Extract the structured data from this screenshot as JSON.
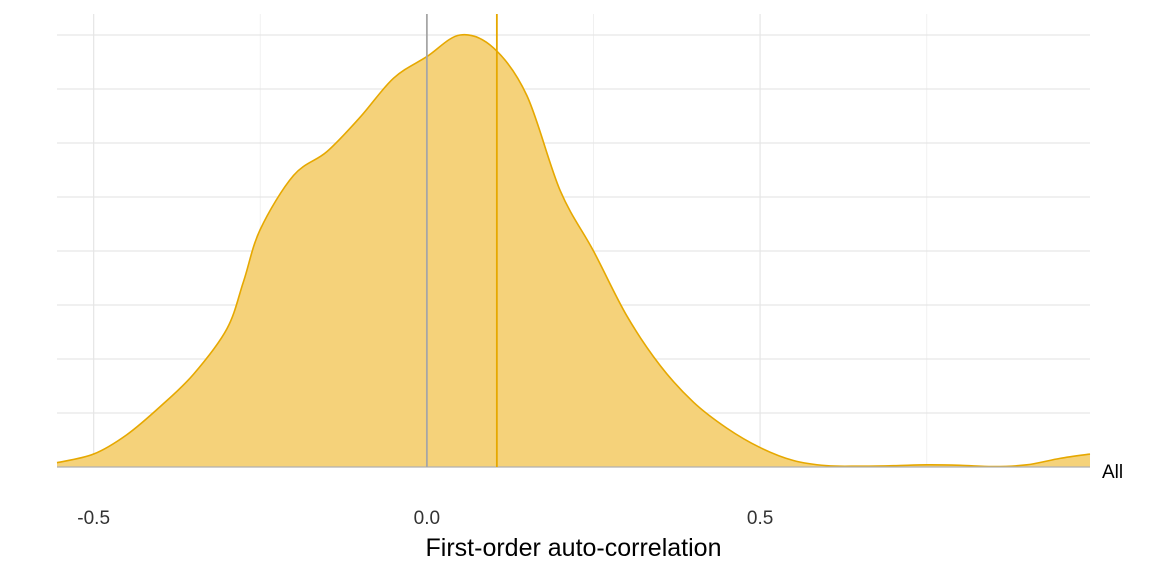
{
  "chart_data": {
    "type": "area",
    "title": "",
    "xlabel": "First-order auto-correlation",
    "ylabel": "",
    "xlim": [
      -0.555,
      0.995
    ],
    "ylim": [
      0,
      1
    ],
    "x_ticks": [
      {
        "value": -0.5,
        "label": "-0.5"
      },
      {
        "value": 0.0,
        "label": "0.0"
      },
      {
        "value": 0.5,
        "label": "0.5"
      }
    ],
    "grid": true,
    "series": [
      {
        "name": "All",
        "x": [
          -0.555,
          -0.5,
          -0.45,
          -0.4,
          -0.35,
          -0.3,
          -0.275,
          -0.25,
          -0.2,
          -0.15,
          -0.1,
          -0.05,
          0.0,
          0.05,
          0.1,
          0.15,
          0.2,
          0.25,
          0.3,
          0.35,
          0.4,
          0.45,
          0.5,
          0.55,
          0.6,
          0.65,
          0.7,
          0.75,
          0.8,
          0.85,
          0.9,
          0.95,
          0.995
        ],
        "density": [
          0.01,
          0.03,
          0.075,
          0.14,
          0.215,
          0.32,
          0.43,
          0.55,
          0.675,
          0.73,
          0.81,
          0.9,
          0.95,
          1.0,
          0.97,
          0.86,
          0.64,
          0.5,
          0.35,
          0.235,
          0.15,
          0.09,
          0.045,
          0.015,
          0.003,
          0.002,
          0.003,
          0.005,
          0.004,
          0.001,
          0.005,
          0.02,
          0.03
        ]
      }
    ],
    "reference_lines": [
      {
        "x": 0.0,
        "color": "#a6a6a6"
      },
      {
        "x": 0.105,
        "color": "#e6a800"
      }
    ],
    "colors": {
      "fill": "#f5d27a",
      "stroke": "#e6a800"
    }
  }
}
